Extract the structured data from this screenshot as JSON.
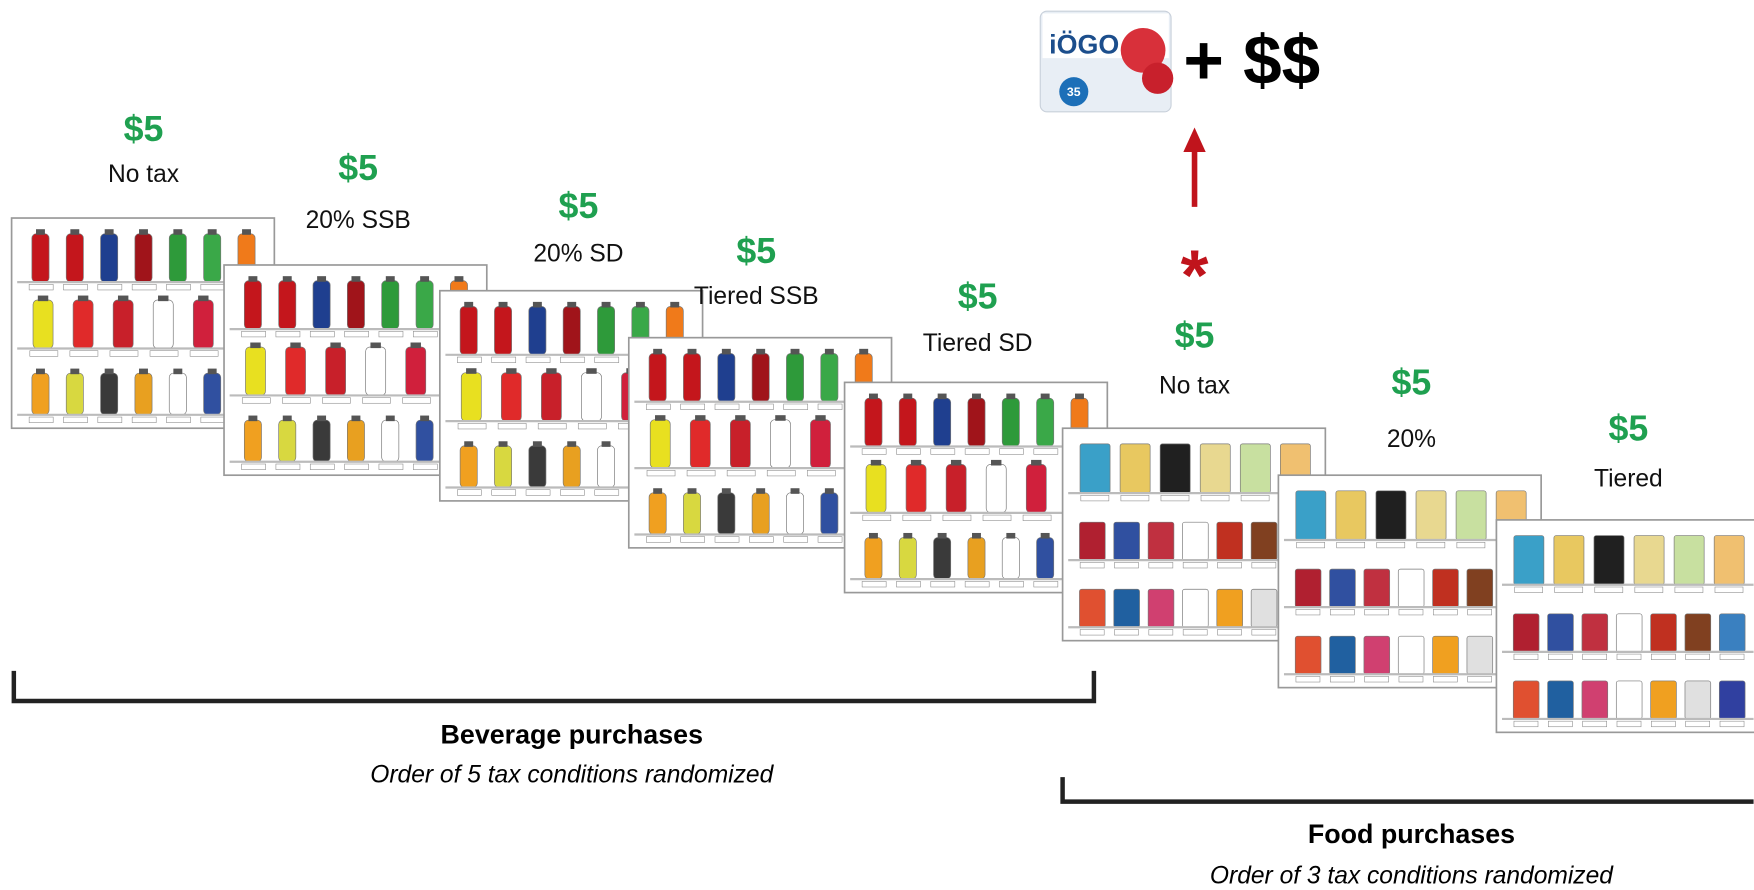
{
  "beverage": {
    "conditions": [
      {
        "amount": "$5",
        "label": "No tax"
      },
      {
        "amount": "$5",
        "label": "20% SSB"
      },
      {
        "amount": "$5",
        "label": "20% SD"
      },
      {
        "amount": "$5",
        "label": "Tiered SSB"
      },
      {
        "amount": "$5",
        "label": "Tiered SD"
      }
    ],
    "title": "Beverage purchases",
    "subtitle": "Order of 5 tax conditions randomized"
  },
  "food": {
    "conditions": [
      {
        "amount": "$5",
        "label": "No tax"
      },
      {
        "amount": "$5",
        "label": "20%"
      },
      {
        "amount": "$5",
        "label": "Tiered"
      }
    ],
    "title": "Food purchases",
    "subtitle": "Order of 3 tax conditions randomized"
  },
  "reward": {
    "brand": "iÖGO",
    "calories": "35",
    "text": "+ $$",
    "marker": "*"
  }
}
